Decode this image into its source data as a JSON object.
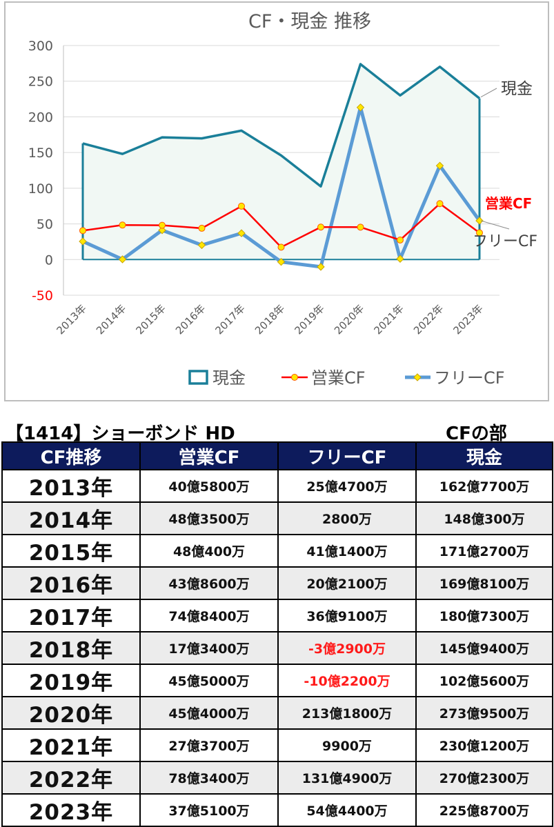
{
  "chart_data": {
    "type": "line",
    "title": "CF・現金 推移",
    "categories": [
      "2013年",
      "2014年",
      "2015年",
      "2016年",
      "2017年",
      "2018年",
      "2019年",
      "2020年",
      "2021年",
      "2022年",
      "2023年"
    ],
    "ylim": [
      -50,
      300
    ],
    "yticks": [
      300,
      250,
      200,
      150,
      100,
      50,
      0,
      -50
    ],
    "grid": true,
    "legend_position": "bottom",
    "series": [
      {
        "name": "現金",
        "style": "area",
        "color": "#1a7f99",
        "fill": "#f1f8f4",
        "values": [
          162.77,
          148.03,
          171.27,
          169.81,
          180.73,
          145.94,
          102.56,
          273.95,
          230.12,
          270.23,
          225.87
        ]
      },
      {
        "name": "営業CF",
        "style": "line",
        "color": "#ff0000",
        "marker_color": "#ffe600",
        "values": [
          40.58,
          48.35,
          48.04,
          43.86,
          74.84,
          17.34,
          45.5,
          45.4,
          27.37,
          78.34,
          37.51
        ]
      },
      {
        "name": "フリーCF",
        "style": "line",
        "color": "#5b9bd5",
        "marker_color": "#ffe600",
        "values": [
          25.47,
          0.28,
          41.14,
          20.21,
          36.91,
          -3.29,
          -10.22,
          213.18,
          0.99,
          131.49,
          54.44
        ]
      }
    ],
    "end_labels": [
      "現金",
      "営業CF",
      "フリーCF"
    ]
  },
  "company_title": "【1414】ショーボンド HD",
  "section_title": "CFの部",
  "table": {
    "headers": [
      "CF推移",
      "営業CF",
      "フリーCF",
      "現金"
    ],
    "rows": [
      {
        "year": "2013年",
        "op": "40億5800万",
        "free": "25億4700万",
        "cash": "162億7700万"
      },
      {
        "year": "2014年",
        "op": "48億3500万",
        "free": "2800万",
        "cash": "148億300万"
      },
      {
        "year": "2015年",
        "op": "48億400万",
        "free": "41億1400万",
        "cash": "171億2700万"
      },
      {
        "year": "2016年",
        "op": "43億8600万",
        "free": "20億2100万",
        "cash": "169億8100万"
      },
      {
        "year": "2017年",
        "op": "74億8400万",
        "free": "36億9100万",
        "cash": "180億7300万"
      },
      {
        "year": "2018年",
        "op": "17億3400万",
        "free": "-3億2900万",
        "cash": "145億9400万"
      },
      {
        "year": "2019年",
        "op": "45億5000万",
        "free": "-10億2200万",
        "cash": "102億5600万"
      },
      {
        "year": "2020年",
        "op": "45億4000万",
        "free": "213億1800万",
        "cash": "273億9500万"
      },
      {
        "year": "2021年",
        "op": "27億3700万",
        "free": "9900万",
        "cash": "230億1200万"
      },
      {
        "year": "2022年",
        "op": "78億3400万",
        "free": "131億4900万",
        "cash": "270億2300万"
      },
      {
        "year": "2023年",
        "op": "37億5100万",
        "free": "54億4400万",
        "cash": "225億8700万"
      }
    ],
    "negative_color": "#ff1a1a"
  }
}
